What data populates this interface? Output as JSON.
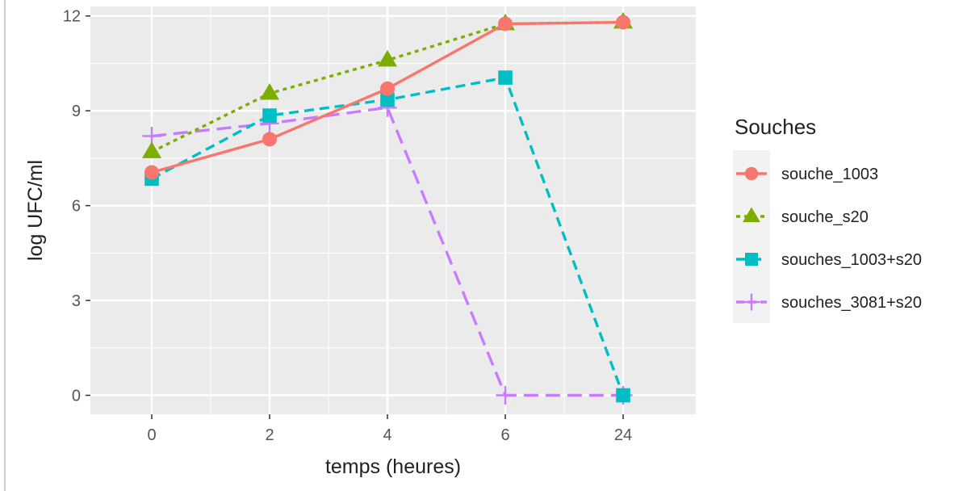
{
  "chart_data": {
    "type": "line",
    "title": "",
    "xlabel": "temps (heures)",
    "ylabel": "log UFC/ml",
    "categories": [
      "0",
      "2",
      "4",
      "6",
      "24"
    ],
    "yticks": [
      0,
      3,
      6,
      9,
      12
    ],
    "ylim": [
      -0.6,
      12.3
    ],
    "grid": true,
    "legend": {
      "title": "Souches",
      "position": "right"
    },
    "series": [
      {
        "name": "souche_1003",
        "color": "#F8766D",
        "marker": "circle",
        "line": "solid",
        "values": [
          7.05,
          8.1,
          9.7,
          11.75,
          11.8
        ]
      },
      {
        "name": "souche_s20",
        "color": "#7CAE00",
        "marker": "triangle",
        "line": "dotted",
        "values": [
          7.7,
          9.55,
          10.6,
          11.75,
          11.8
        ]
      },
      {
        "name": "souches_1003+s20",
        "color": "#00BFC4",
        "marker": "square",
        "line": "dashed",
        "values": [
          6.85,
          8.85,
          9.35,
          10.05,
          0
        ]
      },
      {
        "name": "souches_3081+s20",
        "color": "#C77CFF",
        "marker": "plus",
        "line": "longdash",
        "values": [
          8.2,
          8.6,
          9.1,
          0,
          0
        ]
      }
    ]
  }
}
